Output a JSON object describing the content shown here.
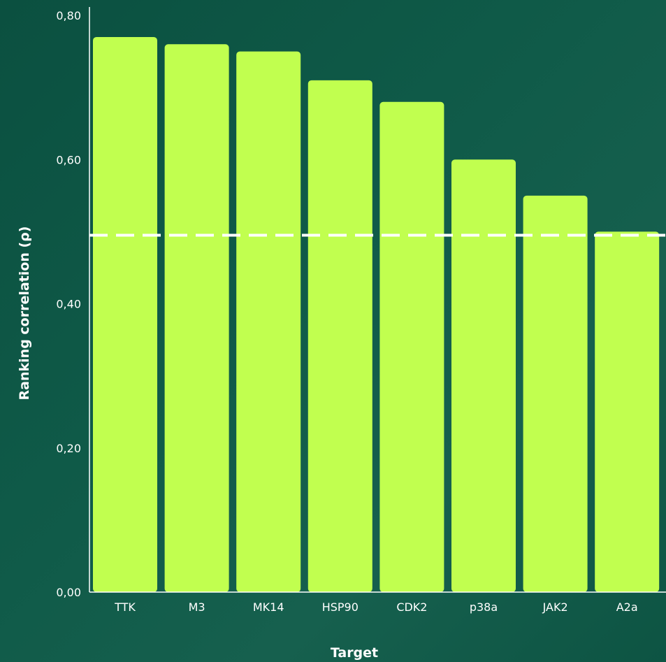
{
  "chart_data": {
    "type": "bar",
    "title": "",
    "xlabel": "Target",
    "ylabel": "Ranking correlation (ρ)",
    "categories": [
      "TTK",
      "M3",
      "MK14",
      "HSP90",
      "CDK2",
      "p38a",
      "JAK2",
      "A2a"
    ],
    "values": [
      0.77,
      0.76,
      0.75,
      0.71,
      0.68,
      0.6,
      0.55,
      0.5
    ],
    "ylim": [
      0,
      0.8
    ],
    "yticks": [
      "0,00",
      "0,20",
      "0,40",
      "0,60",
      "0,80"
    ],
    "reference_line": {
      "value": 0.495,
      "style": "dashed"
    },
    "grid": false,
    "legend": "none",
    "colors": {
      "bar": "#c1ff4f",
      "axis": "#ffffff",
      "reference_line": "#ffffff",
      "background": "#0f5a48"
    }
  }
}
